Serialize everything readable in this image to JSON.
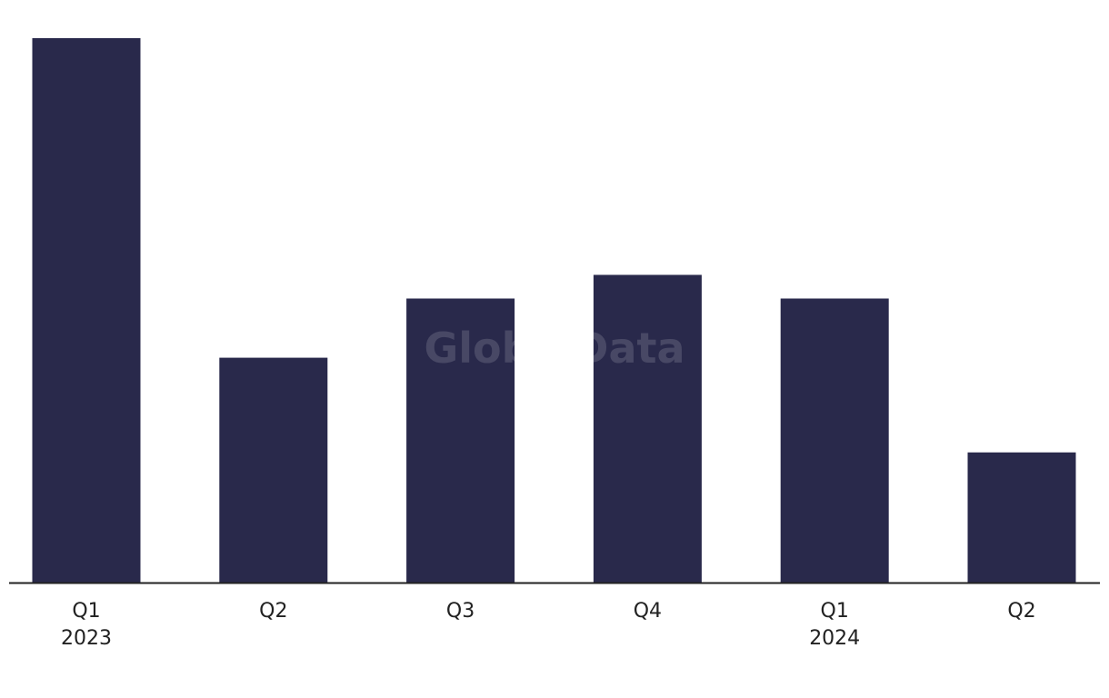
{
  "chart_data": {
    "type": "bar",
    "categories": [
      "Q1\n2023",
      "Q2",
      "Q3",
      "Q4",
      "Q1\n2024",
      "Q2"
    ],
    "values": [
      46,
      19,
      24,
      26,
      24,
      11
    ],
    "color": "#29294b",
    "watermark": "GlobalData"
  }
}
